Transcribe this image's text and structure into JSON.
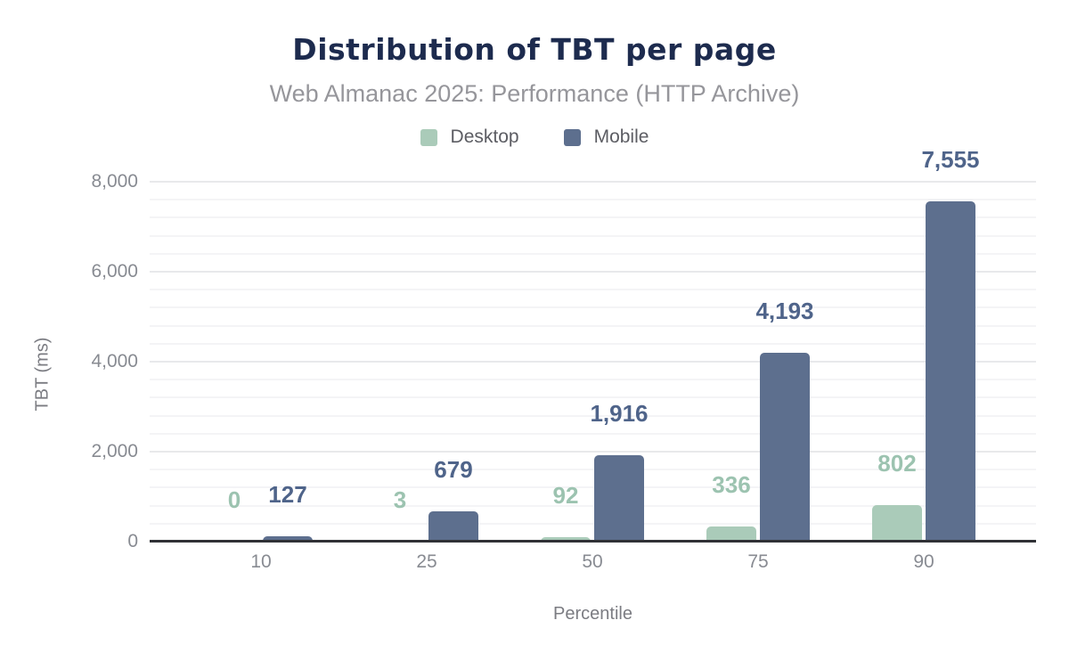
{
  "chart": {
    "title": "Distribution of TBT per page",
    "subtitle": "Web Almanac 2025: Performance (HTTP Archive)"
  },
  "chart_data": {
    "type": "bar",
    "title": "Distribution of TBT per page",
    "subtitle": "Web Almanac 2025: Performance (HTTP Archive)",
    "xlabel": "Percentile",
    "ylabel": "TBT (ms)",
    "categories": [
      "10",
      "25",
      "50",
      "75",
      "90"
    ],
    "series": [
      {
        "name": "Desktop",
        "color": "#aacbb9",
        "label_color": "#9cc3b0",
        "values": [
          0,
          3,
          92,
          336,
          802
        ],
        "labels": [
          "0",
          "3",
          "92",
          "336",
          "802"
        ]
      },
      {
        "name": "Mobile",
        "color": "#5d6f8e",
        "label_color": "#4f648a",
        "values": [
          127,
          679,
          1916,
          4193,
          7555
        ],
        "labels": [
          "127",
          "679",
          "1,916",
          "4,193",
          "7,555"
        ]
      }
    ],
    "ylim": [
      0,
      8000
    ],
    "yticks": [
      0,
      2000,
      4000,
      6000,
      8000
    ],
    "ytick_labels": [
      "0",
      "2,000",
      "4,000",
      "6,000",
      "8,000"
    ],
    "minor_grid_step": 400,
    "major_grid_step": 2000,
    "grid": "horizontal",
    "legend_position": "top",
    "title_color": "#1d2b4e",
    "subtitle_color": "#96969b",
    "axis_line_color": "#303136"
  }
}
